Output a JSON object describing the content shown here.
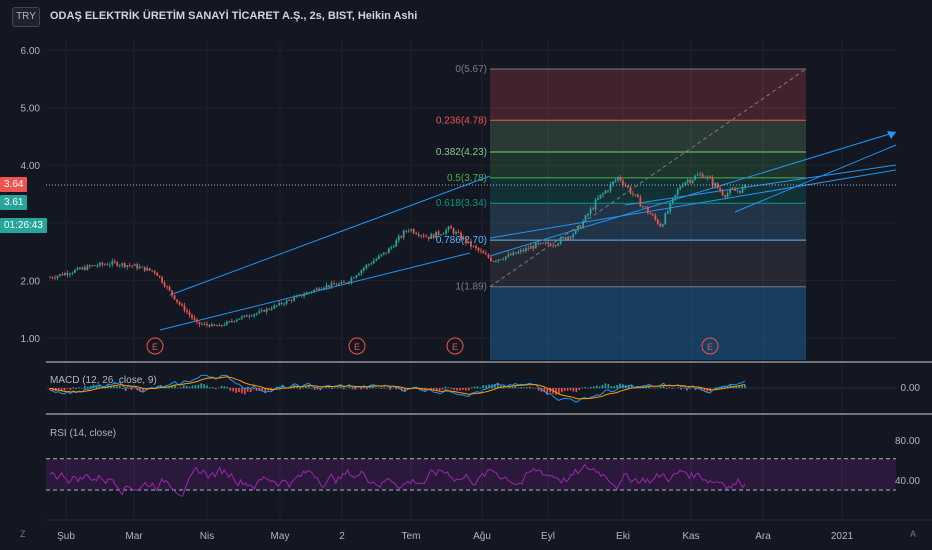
{
  "header": {
    "currency_button": "TRY",
    "title": "ODAŞ ELEKTRİK ÜRETİM SANAYİ TİCARET A.Ş., 2s, BIST, Heikin Ashi"
  },
  "colors": {
    "background": "#131722",
    "up": "#26a69a",
    "down": "#ef5350",
    "trend": "#2196f3",
    "rsi": "#9c27b0",
    "macd": "#2196f3",
    "signal": "#ff9800"
  },
  "price_tags": {
    "current": "3.64",
    "close": "3.61",
    "countdown": "01:26:43"
  },
  "price_axis": [
    "6.00",
    "5.00",
    "4.00",
    "3.00",
    "2.00",
    "1.00"
  ],
  "macd_axis": [
    "0.00"
  ],
  "rsi_axis": [
    "80.00",
    "40.00"
  ],
  "corner_labels": {
    "bottom_left": "Z",
    "bottom_right": "A"
  },
  "chart_data": [
    {
      "type": "line",
      "title": "ODAŞ ELEKTRİK ÜRETİM SANAYİ TİCARET A.Ş., 2s, BIST, Heikin Ashi",
      "x_ticks": [
        "Şub",
        "Mar",
        "Nis",
        "May",
        "2",
        "Tem",
        "Ağu",
        "Eyl",
        "Eki",
        "Kas",
        "Ara",
        "2021"
      ],
      "ylim": [
        0.6,
        6.3
      ],
      "price_path": [
        [
          "Şub",
          2.05
        ],
        [
          "Şub",
          2.15
        ],
        [
          "Şub",
          2.25
        ],
        [
          "Mar",
          2.3
        ],
        [
          "Mar",
          2.25
        ],
        [
          "Mar",
          2.15
        ],
        [
          "Mar",
          1.65
        ],
        [
          "Mar",
          1.25
        ],
        [
          "Nis",
          1.2
        ],
        [
          "Nis",
          1.35
        ],
        [
          "Nis",
          1.45
        ],
        [
          "May",
          1.6
        ],
        [
          "May",
          1.75
        ],
        [
          "2",
          1.9
        ],
        [
          "2",
          1.95
        ],
        [
          "Tem",
          2.25
        ],
        [
          "Tem",
          2.5
        ],
        [
          "Tem",
          2.9
        ],
        [
          "Tem",
          2.75
        ],
        [
          "Ağu",
          2.9
        ],
        [
          "Ağu",
          2.6
        ],
        [
          "Ağu",
          2.35
        ],
        [
          "Ağu",
          2.45
        ],
        [
          "Eyl",
          2.6
        ],
        [
          "Eyl",
          2.65
        ],
        [
          "Eki",
          2.85
        ],
        [
          "Eki",
          3.4
        ],
        [
          "Eki",
          3.8
        ],
        [
          "Kas",
          3.35
        ],
        [
          "Kas",
          2.95
        ],
        [
          "Kas",
          3.7
        ],
        [
          "Kas",
          3.85
        ],
        [
          "Kas",
          3.5
        ],
        [
          "Kas",
          3.6
        ]
      ],
      "fibonacci": [
        {
          "level": "0",
          "value": 5.67,
          "label": "0(5.67)",
          "color": "#787b86"
        },
        {
          "level": "0.236",
          "value": 4.78,
          "label": "0.236(4.78)",
          "color": "#ef5350"
        },
        {
          "level": "0.382",
          "value": 4.23,
          "label": "0.382(4.23)",
          "color": "#81c784"
        },
        {
          "level": "0.5",
          "value": 3.78,
          "label": "0.5(3.78)",
          "color": "#4caf50"
        },
        {
          "level": "0.618",
          "value": 3.34,
          "label": "0.618(3.34)",
          "color": "#089981"
        },
        {
          "level": "0.786",
          "value": 2.7,
          "label": "0.786(2.70)",
          "color": "#64b5f6"
        },
        {
          "level": "1",
          "value": 1.89,
          "label": "1(1.89)",
          "color": "#787b86"
        }
      ],
      "earnings_markers": [
        "E",
        "E",
        "E",
        "E"
      ]
    },
    {
      "type": "line",
      "title": "MACD (12, 26, close, 9)",
      "series": [
        {
          "name": "MACD"
        },
        {
          "name": "Signal"
        }
      ],
      "y_ticks": [
        "0.00"
      ]
    },
    {
      "type": "line",
      "title": "RSI (14, close)",
      "series": [
        {
          "name": "RSI"
        }
      ],
      "bands": [
        70,
        30
      ],
      "y_ticks": [
        "80.00",
        "40.00"
      ]
    }
  ]
}
